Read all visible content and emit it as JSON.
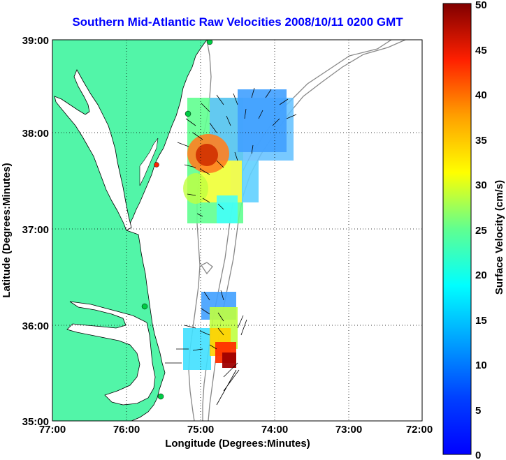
{
  "title": "Southern Mid-Atlantic Raw Velocities 2008/10/11 0200 GMT",
  "xaxis": {
    "label": "Longitude (Degrees:Minutes)",
    "ticks": [
      "77:00",
      "76:00",
      "75:00",
      "74:00",
      "73:00",
      "72:00"
    ]
  },
  "yaxis": {
    "label": "Latitude (Degrees:Minutes)",
    "ticks": [
      "39:00",
      "38:00",
      "37:00",
      "36:00",
      "35:00"
    ]
  },
  "colorbar": {
    "label": "Surface Velocity (cm/s)",
    "ticks": [
      "50",
      "45",
      "40",
      "35",
      "30",
      "25",
      "20",
      "15",
      "10",
      "5",
      "0"
    ],
    "min": 0,
    "max": 50,
    "colormap": "jet"
  },
  "colors": {
    "land": "#52f5a8",
    "title": "#0000ff",
    "station": "#00cc44",
    "station_offline": "#ff2200"
  }
}
